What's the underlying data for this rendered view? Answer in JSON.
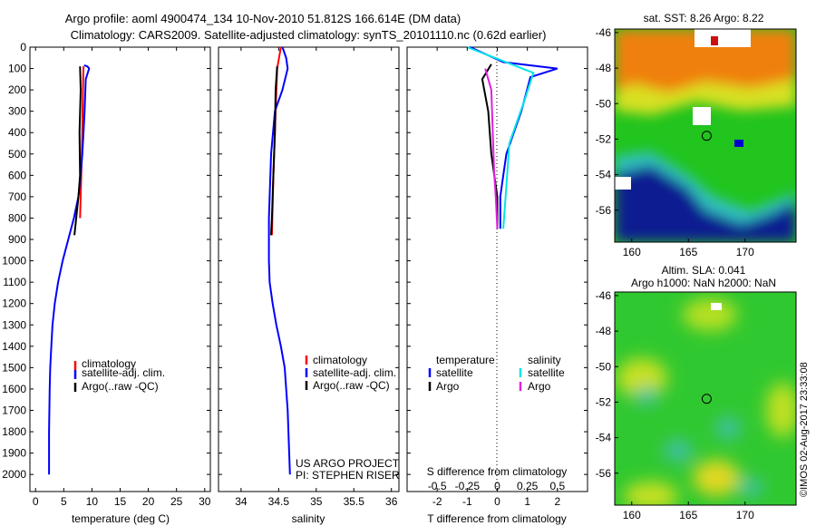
{
  "header": {
    "line1": "Argo profile: aoml 4900474_134 10-Nov-2010 51.812S 166.614E (DM data)",
    "line2": "Climatology: CARS2009. Satellite-adjusted climatology: synTS_20101110.nc (0.62d earlier)"
  },
  "depth_axis": {
    "ticks": [
      0,
      100,
      200,
      300,
      400,
      500,
      600,
      700,
      800,
      900,
      1000,
      1100,
      1200,
      1300,
      1400,
      1500,
      1600,
      1700,
      1800,
      1900,
      2000
    ],
    "range": [
      0,
      2080
    ]
  },
  "credits": {
    "project": "US ARGO PROJECT",
    "pi": "PI: STEPHEN RISER",
    "watermark": "©IMOS 02-Aug-2017 23:33:08"
  },
  "colors": {
    "clim": "#ff0000",
    "sat": "#0000ff",
    "argo": "#000000",
    "sat_s": "#00e5e5",
    "argo_s": "#e020e0"
  },
  "chart_data": [
    {
      "type": "line",
      "xlabel": "temperature (deg C)",
      "ylabel": "",
      "xlim": [
        -1,
        31
      ],
      "xticks": [
        0,
        5,
        10,
        15,
        20,
        25,
        30
      ],
      "legend": [
        "climatology",
        "satellite-adj. clim.",
        "Argo(..raw -QC)"
      ],
      "legend_loc": "lower-right",
      "series": [
        {
          "name": "climatology",
          "color": "#ff0000",
          "x": [
            8.5,
            8.4,
            8.3,
            8.1,
            7.9
          ],
          "y": [
            90,
            200,
            400,
            600,
            800
          ]
        },
        {
          "name": "satellite-adj. clim.",
          "color": "#0000ff",
          "x": [
            8.6,
            9.2,
            9.5,
            8.9,
            8.7,
            8.5,
            8.3,
            8.0,
            7.6,
            6.8,
            5.8,
            4.8,
            4.0,
            3.4,
            3.0,
            2.8,
            2.6,
            2.5,
            2.4,
            2.4
          ],
          "y": [
            85,
            90,
            100,
            150,
            300,
            400,
            500,
            600,
            700,
            800,
            900,
            1000,
            1100,
            1200,
            1300,
            1400,
            1500,
            1600,
            1800,
            2000
          ]
        },
        {
          "name": "Argo(..raw -QC)",
          "color": "#000000",
          "x": [
            7.9,
            8.0,
            7.8,
            7.9,
            7.6,
            6.9
          ],
          "y": [
            90,
            200,
            400,
            600,
            700,
            880
          ]
        }
      ]
    },
    {
      "type": "line",
      "xlabel": "salinity",
      "ylabel": "",
      "xlim": [
        33.7,
        36.1
      ],
      "xticks": [
        34,
        34.5,
        35,
        35.5,
        36
      ],
      "legend": [
        "climatology",
        "satellite-adj. clim.",
        "Argo(..raw -QC)"
      ],
      "legend_loc": "lower-right",
      "series": [
        {
          "name": "climatology",
          "color": "#ff0000",
          "x": [
            34.53,
            34.48,
            34.46,
            34.43,
            34.41
          ],
          "y": [
            0,
            100,
            300,
            600,
            880
          ]
        },
        {
          "name": "satellite-adj. clim.",
          "color": "#0000ff",
          "x": [
            34.55,
            34.6,
            34.62,
            34.55,
            34.45,
            34.4,
            34.37,
            34.37,
            34.38,
            34.42,
            34.47,
            34.53,
            34.58,
            34.62,
            34.65
          ],
          "y": [
            0,
            50,
            100,
            200,
            300,
            500,
            800,
            1000,
            1100,
            1200,
            1300,
            1400,
            1500,
            1700,
            2000
          ]
        },
        {
          "name": "Argo(..raw -QC)",
          "color": "#000000",
          "x": [
            34.48,
            34.46,
            34.45,
            34.43,
            34.41,
            34.4
          ],
          "y": [
            90,
            200,
            400,
            600,
            800,
            880
          ]
        }
      ]
    },
    {
      "type": "line",
      "xlabel": "T difference from climatology",
      "xlabel2": "S difference from climatology",
      "xlim": [
        -3,
        3
      ],
      "xticks": [
        -2,
        -1,
        0,
        1,
        2
      ],
      "xticks_top": [
        "-0.5",
        "-0.25",
        "0",
        "0.25",
        "0.5"
      ],
      "legend_temperature": {
        "title": "temperature",
        "items": [
          "satellite",
          "Argo"
        ]
      },
      "legend_salinity": {
        "title": "salinity",
        "items": [
          "satellite",
          "Argo"
        ]
      },
      "series": [
        {
          "name": "satellite",
          "group": "temperature",
          "color": "#0000ff",
          "x": [
            -0.9,
            0.2,
            2.0,
            1.1,
            0.8,
            0.3,
            0.2,
            0.1,
            0.1
          ],
          "y": [
            0,
            70,
            100,
            140,
            300,
            500,
            600,
            700,
            850
          ]
        },
        {
          "name": "Argo",
          "group": "temperature",
          "color": "#000000",
          "x": [
            -0.2,
            -0.5,
            -0.3,
            -0.2,
            -0.1,
            0,
            0
          ],
          "y": [
            80,
            150,
            300,
            500,
            600,
            700,
            850
          ]
        },
        {
          "name": "satellite",
          "group": "salinity",
          "color": "#00e5e5",
          "x": [
            -1.0,
            0.1,
            1.2,
            0.9,
            0.4,
            0.3,
            0.2
          ],
          "y": [
            0,
            60,
            120,
            250,
            450,
            650,
            850
          ]
        },
        {
          "name": "Argo",
          "group": "salinity",
          "color": "#e020e0",
          "x": [
            -0.4,
            -0.2,
            -0.15,
            -0.1,
            -0.05,
            0
          ],
          "y": [
            100,
            200,
            400,
            600,
            700,
            850
          ]
        }
      ]
    },
    {
      "type": "heatmap",
      "title": "sat. SST: 8.26 Argo: 8.22",
      "xlim": [
        158.5,
        174.5
      ],
      "ylim": [
        -57.8,
        -45.8
      ],
      "xticks": [
        160,
        165,
        170
      ],
      "yticks": [
        -46,
        -48,
        -50,
        -52,
        -54,
        -56
      ],
      "marker": {
        "lon": 166.614,
        "lat": -51.812
      }
    },
    {
      "type": "heatmap",
      "title": "Altim. SLA: 0.041",
      "subtitle": "Argo h1000: NaN h2000: NaN",
      "xlim": [
        158.5,
        174.5
      ],
      "ylim": [
        -57.8,
        -45.8
      ],
      "xticks": [
        160,
        165,
        170
      ],
      "yticks": [
        -46,
        -48,
        -50,
        -52,
        -54,
        -56
      ],
      "marker": {
        "lon": 166.614,
        "lat": -51.812
      }
    }
  ]
}
